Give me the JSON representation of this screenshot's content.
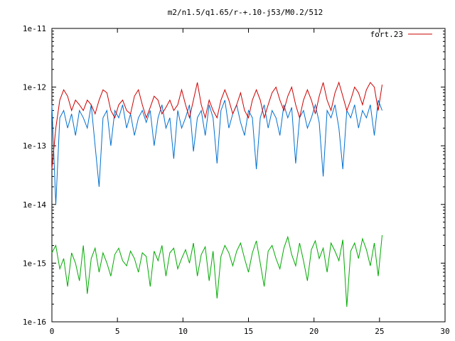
{
  "chart_data": {
    "type": "line",
    "title": "m2/n1.5/q1.65/r-+.10-j53/M0.2/512",
    "xlabel": "",
    "ylabel": "",
    "xlim": [
      0,
      30
    ],
    "ylim": [
      1e-16,
      1e-11
    ],
    "yscale": "log",
    "grid": false,
    "legend_position": "top-right",
    "x_ticks": [
      "0",
      "5",
      "10",
      "15",
      "20",
      "25",
      "30"
    ],
    "y_ticks": [
      "1e-16",
      "1e-15",
      "1e-14",
      "1e-13",
      "1e-12",
      "1e-11"
    ],
    "series": [
      {
        "name": "fort.23",
        "color": "#cc0000",
        "x": [
          0.0,
          0.3,
          0.6,
          0.9,
          1.2,
          1.5,
          1.8,
          2.1,
          2.4,
          2.7,
          3.0,
          3.3,
          3.6,
          3.9,
          4.2,
          4.5,
          4.8,
          5.1,
          5.4,
          5.7,
          6.0,
          6.3,
          6.6,
          6.9,
          7.2,
          7.5,
          7.8,
          8.1,
          8.4,
          8.7,
          9.0,
          9.3,
          9.6,
          9.9,
          10.2,
          10.5,
          10.8,
          11.1,
          11.4,
          11.7,
          12.0,
          12.3,
          12.6,
          12.9,
          13.2,
          13.5,
          13.8,
          14.1,
          14.4,
          14.7,
          15.0,
          15.3,
          15.6,
          15.9,
          16.2,
          16.5,
          16.8,
          17.1,
          17.4,
          17.7,
          18.0,
          18.3,
          18.6,
          18.9,
          19.2,
          19.5,
          19.8,
          20.1,
          20.4,
          20.7,
          21.0,
          21.3,
          21.6,
          21.9,
          22.2,
          22.5,
          22.8,
          23.1,
          23.4,
          23.7,
          24.0,
          24.3,
          24.6,
          24.9,
          25.2
        ],
        "y": [
          4e-14,
          2e-13,
          6e-13,
          9e-13,
          7e-13,
          4e-13,
          6e-13,
          5e-13,
          4e-13,
          6e-13,
          5e-13,
          3.5e-13,
          6e-13,
          9e-13,
          8e-13,
          4e-13,
          3e-13,
          5e-13,
          6e-13,
          4e-13,
          3.5e-13,
          7e-13,
          9e-13,
          5e-13,
          3e-13,
          4.5e-13,
          7e-13,
          6e-13,
          3.5e-13,
          4.5e-13,
          6e-13,
          4e-13,
          5e-13,
          9e-13,
          5e-13,
          3e-13,
          6e-13,
          1.2e-12,
          5e-13,
          3e-13,
          6e-13,
          4e-13,
          3e-13,
          6e-13,
          9e-13,
          6e-13,
          3.5e-13,
          5e-13,
          8e-13,
          4e-13,
          3e-13,
          6e-13,
          9e-13,
          6e-13,
          3e-13,
          5e-13,
          8e-13,
          1e-12,
          6e-13,
          4e-13,
          7e-13,
          1e-12,
          5e-13,
          3e-13,
          6e-13,
          9e-13,
          6e-13,
          3.5e-13,
          7e-13,
          1.2e-12,
          6e-13,
          4e-13,
          8e-13,
          1.2e-12,
          7e-13,
          4e-13,
          6e-13,
          1e-12,
          8e-13,
          5e-13,
          9e-13,
          1.2e-12,
          1e-12,
          4e-13,
          1.1e-12
        ]
      },
      {
        "color": "#0070d0",
        "x": [
          0.0,
          0.3,
          0.6,
          0.9,
          1.2,
          1.5,
          1.8,
          2.1,
          2.4,
          2.7,
          3.0,
          3.3,
          3.6,
          3.9,
          4.2,
          4.5,
          4.8,
          5.1,
          5.4,
          5.7,
          6.0,
          6.3,
          6.6,
          6.9,
          7.2,
          7.5,
          7.8,
          8.1,
          8.4,
          8.7,
          9.0,
          9.3,
          9.6,
          9.9,
          10.2,
          10.5,
          10.8,
          11.1,
          11.4,
          11.7,
          12.0,
          12.3,
          12.6,
          12.9,
          13.2,
          13.5,
          13.8,
          14.1,
          14.4,
          14.7,
          15.0,
          15.3,
          15.6,
          15.9,
          16.2,
          16.5,
          16.8,
          17.1,
          17.4,
          17.7,
          18.0,
          18.3,
          18.6,
          18.9,
          19.2,
          19.5,
          19.8,
          20.1,
          20.4,
          20.7,
          21.0,
          21.3,
          21.6,
          21.9,
          22.2,
          22.5,
          22.8,
          23.1,
          23.4,
          23.7,
          24.0,
          24.3,
          24.6,
          24.9,
          25.2
        ],
        "y": [
          5e-13,
          1e-14,
          3e-13,
          4e-13,
          2e-13,
          3.5e-13,
          1.5e-13,
          4e-13,
          3e-13,
          2e-13,
          5e-13,
          1e-13,
          2e-14,
          3e-13,
          4e-13,
          1e-13,
          4e-13,
          3e-13,
          5e-13,
          2e-13,
          3.5e-13,
          1.5e-13,
          3e-13,
          4e-13,
          2.5e-13,
          4e-13,
          1e-13,
          3e-13,
          5e-13,
          2e-13,
          3e-13,
          6e-14,
          4e-13,
          2e-13,
          3e-13,
          5e-13,
          8e-14,
          3e-13,
          4e-13,
          1.5e-13,
          5e-13,
          3e-13,
          5e-14,
          4e-13,
          6e-13,
          2e-13,
          3.5e-13,
          5e-13,
          2.5e-13,
          1.5e-13,
          4e-13,
          3e-13,
          4e-14,
          3e-13,
          5e-13,
          2e-13,
          4e-13,
          3e-13,
          1.5e-13,
          5e-13,
          3e-13,
          4.5e-13,
          5e-14,
          3e-13,
          4e-13,
          2e-13,
          3e-13,
          5e-13,
          2.5e-13,
          3e-14,
          4e-13,
          3e-13,
          5e-13,
          2e-13,
          4e-14,
          4e-13,
          3e-13,
          5e-13,
          2e-13,
          4e-13,
          3e-13,
          5e-13,
          1.5e-13,
          6e-13,
          4e-13
        ]
      },
      {
        "color": "#00aa00",
        "x": [
          0.0,
          0.3,
          0.6,
          0.9,
          1.2,
          1.5,
          1.8,
          2.1,
          2.4,
          2.7,
          3.0,
          3.3,
          3.6,
          3.9,
          4.2,
          4.5,
          4.8,
          5.1,
          5.4,
          5.7,
          6.0,
          6.3,
          6.6,
          6.9,
          7.2,
          7.5,
          7.8,
          8.1,
          8.4,
          8.7,
          9.0,
          9.3,
          9.6,
          9.9,
          10.2,
          10.5,
          10.8,
          11.1,
          11.4,
          11.7,
          12.0,
          12.3,
          12.6,
          12.9,
          13.2,
          13.5,
          13.8,
          14.1,
          14.4,
          14.7,
          15.0,
          15.3,
          15.6,
          15.9,
          16.2,
          16.5,
          16.8,
          17.1,
          17.4,
          17.7,
          18.0,
          18.3,
          18.6,
          18.9,
          19.2,
          19.5,
          19.8,
          20.1,
          20.4,
          20.7,
          21.0,
          21.3,
          21.6,
          21.9,
          22.2,
          22.5,
          22.8,
          23.1,
          23.4,
          23.7,
          24.0,
          24.3,
          24.6,
          24.9,
          25.2
        ],
        "y": [
          1.5e-15,
          2e-15,
          8e-16,
          1.2e-15,
          4e-16,
          1.5e-15,
          1e-15,
          5e-16,
          2e-15,
          3e-16,
          1.2e-15,
          1.8e-15,
          7e-16,
          1.5e-15,
          1e-15,
          6e-16,
          1.4e-15,
          1.8e-15,
          1.1e-15,
          9e-16,
          1.6e-15,
          1.2e-15,
          7e-16,
          1.5e-15,
          1.3e-15,
          4e-16,
          1.6e-15,
          1.1e-15,
          2e-15,
          6e-16,
          1.5e-15,
          1.8e-15,
          8e-16,
          1.2e-15,
          1.7e-15,
          1e-15,
          2.2e-15,
          6e-16,
          1.4e-15,
          1.9e-15,
          5e-16,
          1.6e-15,
          2.5e-16,
          1.3e-15,
          2e-15,
          1.5e-15,
          9e-16,
          1.6e-15,
          2.2e-15,
          1.2e-15,
          7e-16,
          1.5e-15,
          2.4e-15,
          1e-15,
          4e-16,
          1.6e-15,
          2e-15,
          1.2e-15,
          8e-16,
          1.8e-15,
          2.8e-15,
          1.4e-15,
          9e-16,
          2.2e-15,
          1.1e-15,
          5e-16,
          1.7e-15,
          2.4e-15,
          1.2e-15,
          1.8e-15,
          7e-16,
          2.2e-15,
          1.6e-15,
          1.1e-15,
          2.5e-15,
          1.8e-16,
          1.6e-15,
          2.2e-15,
          1.2e-15,
          2.6e-15,
          1.7e-15,
          9e-16,
          2.2e-15,
          6e-16,
          3e-15
        ]
      }
    ]
  }
}
